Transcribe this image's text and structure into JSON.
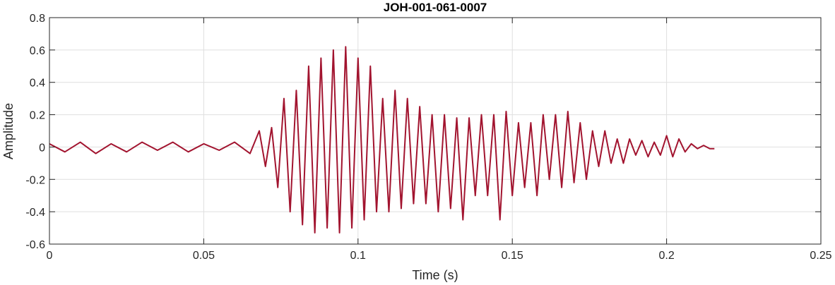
{
  "chart_data": {
    "type": "line",
    "title": "JOH-001-061-0007",
    "xlabel": "Time (s)",
    "ylabel": "Amplitude",
    "xlim": [
      0,
      0.25
    ],
    "ylim": [
      -0.6,
      0.8
    ],
    "x_ticks": [
      0,
      0.05,
      0.1,
      0.15,
      0.2,
      0.25
    ],
    "x_tick_labels": [
      "0",
      "0.05",
      "0.1",
      "0.15",
      "0.2",
      "0.25"
    ],
    "y_ticks": [
      -0.6,
      -0.4,
      -0.2,
      0,
      0.2,
      0.4,
      0.6,
      0.8
    ],
    "y_tick_labels": [
      "-0.6",
      "-0.4",
      "-0.2",
      "0",
      "0.2",
      "0.4",
      "0.6",
      "0.8"
    ],
    "grid": true,
    "line_color": "#a2142f",
    "series": [
      {
        "x": [
          0,
          0.005,
          0.01,
          0.015,
          0.02,
          0.025,
          0.03,
          0.035,
          0.04,
          0.045,
          0.05,
          0.055,
          0.06,
          0.065,
          0.068,
          0.07,
          0.072,
          0.074,
          0.076,
          0.078,
          0.08,
          0.082,
          0.084,
          0.086,
          0.088,
          0.09,
          0.092,
          0.094,
          0.096,
          0.098,
          0.1,
          0.102,
          0.104,
          0.106,
          0.108,
          0.11,
          0.112,
          0.114,
          0.116,
          0.118,
          0.12,
          0.122,
          0.124,
          0.126,
          0.128,
          0.13,
          0.132,
          0.134,
          0.136,
          0.138,
          0.14,
          0.142,
          0.144,
          0.146,
          0.148,
          0.15,
          0.152,
          0.154,
          0.156,
          0.158,
          0.16,
          0.162,
          0.164,
          0.166,
          0.168,
          0.17,
          0.172,
          0.174,
          0.176,
          0.178,
          0.18,
          0.182,
          0.184,
          0.186,
          0.188,
          0.19,
          0.192,
          0.194,
          0.196,
          0.198,
          0.2,
          0.202,
          0.204,
          0.206,
          0.208,
          0.21,
          0.212,
          0.214,
          0.2155
        ],
        "y": [
          0.02,
          -0.03,
          0.03,
          -0.04,
          0.02,
          -0.03,
          0.03,
          -0.02,
          0.03,
          -0.03,
          0.02,
          -0.02,
          0.03,
          -0.04,
          0.1,
          -0.12,
          0.12,
          -0.25,
          0.3,
          -0.4,
          0.35,
          -0.48,
          0.5,
          -0.53,
          0.55,
          -0.5,
          0.6,
          -0.53,
          0.62,
          -0.5,
          0.55,
          -0.45,
          0.5,
          -0.4,
          0.3,
          -0.4,
          0.35,
          -0.38,
          0.3,
          -0.35,
          0.25,
          -0.35,
          0.2,
          -0.4,
          0.2,
          -0.38,
          0.18,
          -0.45,
          0.18,
          -0.3,
          0.2,
          -0.3,
          0.2,
          -0.45,
          0.22,
          -0.3,
          0.15,
          -0.25,
          0.15,
          -0.3,
          0.2,
          -0.2,
          0.2,
          -0.25,
          0.22,
          -0.22,
          0.15,
          -0.2,
          0.1,
          -0.12,
          0.1,
          -0.1,
          0.05,
          -0.1,
          0.05,
          -0.05,
          0.04,
          -0.06,
          0.03,
          -0.05,
          0.07,
          -0.06,
          0.05,
          -0.03,
          0.02,
          -0.01,
          0.01,
          -0.01,
          -0.01
        ]
      }
    ]
  }
}
